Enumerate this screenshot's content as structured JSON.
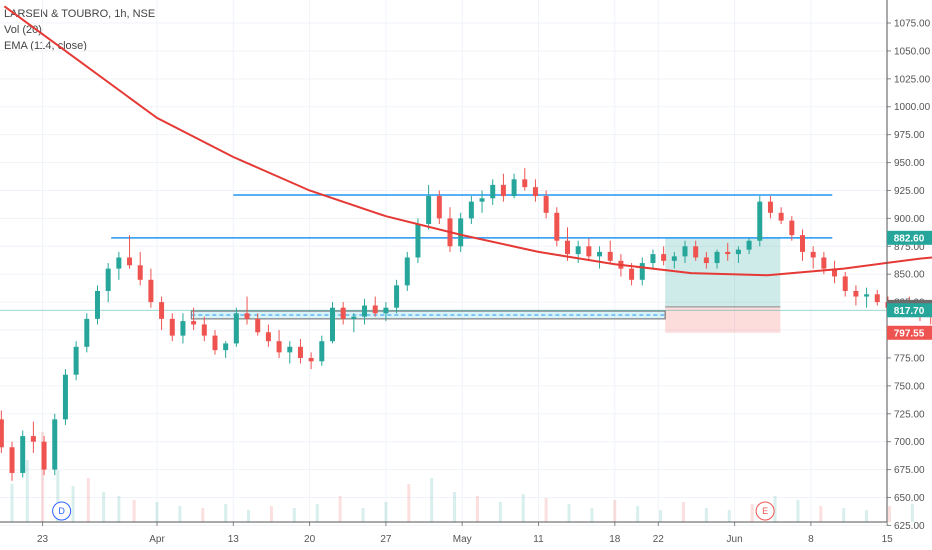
{
  "legend": {
    "title": "LARSEN & TOUBRO, 1h, NSE",
    "volume": "Vol (20)",
    "ema": "EMA (114, close)"
  },
  "price_labels": [
    {
      "text": "882.60",
      "value": 882.6,
      "color": "#26a69a"
    },
    {
      "text": "820.75",
      "value": 820.75,
      "color": "#6d6d6d"
    },
    {
      "text": "817.70",
      "value": 817.7,
      "color": "#26a69a"
    },
    {
      "text": "797.55",
      "value": 797.55,
      "color": "#ef5350"
    }
  ],
  "badges": [
    {
      "text": "D",
      "color": "#2962ff"
    },
    {
      "text": "E",
      "color": "#ef5350"
    }
  ],
  "chart_data": {
    "type": "candlestick",
    "y_ticks": [
      "625.00",
      "650.00",
      "675.00",
      "700.00",
      "725.00",
      "750.00",
      "775.00",
      "800.00",
      "825.00",
      "850.00",
      "875.00",
      "900.00",
      "925.00",
      "950.00",
      "975.00",
      "1000.00",
      "1025.00",
      "1050.00",
      "1075.00"
    ],
    "x_ticks": [
      "23",
      "Apr",
      "13",
      "20",
      "27",
      "May",
      "11",
      "18",
      "22",
      "Jun",
      "8",
      "15"
    ],
    "ylim": [
      622,
      1093
    ],
    "horizontal_lines": [
      {
        "value": 921,
        "color": "#2196f3"
      },
      {
        "value": 882.6,
        "color": "#2196f3"
      }
    ],
    "support_zone": {
      "top": 817,
      "bottom": 810
    },
    "position": {
      "entry": 820.75,
      "target": 882.6,
      "stop": 797.55
    },
    "ema_114": [
      [
        -2,
        1090
      ],
      [
        -1,
        1040
      ],
      [
        0,
        990
      ],
      [
        1,
        955
      ],
      [
        2,
        925
      ],
      [
        3,
        902
      ],
      [
        4,
        885
      ],
      [
        5,
        870
      ],
      [
        6,
        859
      ],
      [
        7,
        851
      ],
      [
        8,
        849
      ],
      [
        9,
        855
      ],
      [
        10,
        864
      ],
      [
        11,
        870
      ],
      [
        12,
        876
      ],
      [
        13,
        880
      ],
      [
        14,
        882
      ],
      [
        15,
        880
      ],
      [
        16,
        878
      ],
      [
        17,
        876
      ],
      [
        18,
        875
      ],
      [
        19,
        875
      ],
      [
        20,
        877
      ],
      [
        21,
        880
      ],
      [
        22,
        879
      ],
      [
        23,
        876
      ],
      [
        24,
        873
      ],
      [
        25,
        868
      ],
      [
        26,
        862
      ],
      [
        27,
        859
      ],
      [
        28,
        855
      ],
      [
        29,
        849
      ],
      [
        30,
        848
      ],
      [
        31,
        852
      ],
      [
        32,
        848
      ],
      [
        33,
        842
      ],
      [
        34,
        839
      ]
    ],
    "ohlc": [
      [
        -4.88,
        970,
        975,
        958,
        962
      ],
      [
        -4.74,
        962,
        968,
        950,
        955
      ],
      [
        -4.6,
        955,
        960,
        935,
        940
      ],
      [
        -4.46,
        940,
        945,
        915,
        920
      ],
      [
        -4.32,
        920,
        925,
        900,
        905
      ],
      [
        -4.0,
        880,
        890,
        860,
        865
      ],
      [
        -3.86,
        865,
        875,
        850,
        860
      ],
      [
        -3.72,
        860,
        870,
        845,
        868
      ],
      [
        -3.58,
        868,
        872,
        850,
        855
      ],
      [
        -3.44,
        855,
        862,
        835,
        840
      ],
      [
        -3.3,
        840,
        878,
        835,
        870
      ],
      [
        -3.16,
        870,
        882,
        855,
        860
      ],
      [
        -3.02,
        860,
        866,
        840,
        845
      ],
      [
        -2.88,
        845,
        850,
        800,
        805
      ],
      [
        -2.74,
        805,
        810,
        770,
        780
      ],
      [
        -2.6,
        780,
        790,
        740,
        750
      ],
      [
        -2.46,
        750,
        760,
        700,
        705
      ],
      [
        -2.32,
        705,
        740,
        695,
        735
      ],
      [
        -2.18,
        735,
        745,
        715,
        720
      ],
      [
        -2.04,
        720,
        728,
        690,
        695
      ],
      [
        -1.9,
        695,
        700,
        665,
        672
      ],
      [
        -1.76,
        672,
        710,
        668,
        705
      ],
      [
        -1.62,
        705,
        718,
        690,
        700
      ],
      [
        -1.48,
        700,
        705,
        670,
        675
      ],
      [
        -1.34,
        675,
        725,
        670,
        720
      ],
      [
        -1.2,
        720,
        765,
        715,
        760
      ],
      [
        -1.06,
        760,
        790,
        755,
        785
      ],
      [
        -0.92,
        785,
        815,
        780,
        810
      ],
      [
        -0.78,
        810,
        840,
        805,
        835
      ],
      [
        -0.64,
        835,
        860,
        825,
        855
      ],
      [
        -0.5,
        855,
        870,
        845,
        865
      ],
      [
        -0.36,
        865,
        885,
        855,
        858
      ],
      [
        -0.22,
        858,
        870,
        840,
        845
      ],
      [
        -0.08,
        845,
        855,
        820,
        825
      ],
      [
        0.06,
        825,
        830,
        800,
        810
      ],
      [
        0.2,
        810,
        815,
        790,
        795
      ],
      [
        0.34,
        795,
        815,
        788,
        808
      ],
      [
        0.48,
        808,
        820,
        800,
        805
      ],
      [
        0.62,
        805,
        812,
        790,
        795
      ],
      [
        0.76,
        795,
        800,
        778,
        782
      ],
      [
        0.9,
        782,
        790,
        775,
        788
      ],
      [
        1.04,
        788,
        820,
        785,
        815
      ],
      [
        1.18,
        815,
        830,
        805,
        810
      ],
      [
        1.32,
        810,
        815,
        795,
        798
      ],
      [
        1.46,
        798,
        805,
        785,
        790
      ],
      [
        1.6,
        790,
        800,
        775,
        780
      ],
      [
        1.74,
        780,
        790,
        770,
        785
      ],
      [
        1.88,
        785,
        792,
        770,
        775
      ],
      [
        2.02,
        775,
        780,
        765,
        772
      ],
      [
        2.16,
        772,
        795,
        768,
        790
      ],
      [
        2.3,
        790,
        825,
        788,
        820
      ],
      [
        2.44,
        820,
        825,
        805,
        810
      ],
      [
        2.58,
        810,
        815,
        798,
        812
      ],
      [
        2.72,
        812,
        828,
        805,
        822
      ],
      [
        2.86,
        822,
        830,
        812,
        815
      ],
      [
        3.0,
        815,
        825,
        808,
        820
      ],
      [
        3.14,
        820,
        845,
        815,
        840
      ],
      [
        3.28,
        840,
        870,
        835,
        865
      ],
      [
        3.42,
        865,
        900,
        860,
        895
      ],
      [
        3.56,
        895,
        930,
        890,
        920
      ],
      [
        3.7,
        920,
        925,
        895,
        900
      ],
      [
        3.84,
        900,
        910,
        870,
        875
      ],
      [
        3.98,
        875,
        905,
        870,
        900
      ],
      [
        4.12,
        900,
        920,
        895,
        915
      ],
      [
        4.26,
        915,
        925,
        905,
        918
      ],
      [
        4.4,
        918,
        935,
        912,
        930
      ],
      [
        4.54,
        930,
        940,
        915,
        920
      ],
      [
        4.68,
        920,
        940,
        918,
        935
      ],
      [
        4.82,
        935,
        945,
        925,
        928
      ],
      [
        4.96,
        928,
        935,
        915,
        920
      ],
      [
        5.1,
        920,
        925,
        900,
        905
      ],
      [
        5.24,
        905,
        910,
        875,
        880
      ],
      [
        5.38,
        880,
        892,
        862,
        868
      ],
      [
        5.52,
        868,
        880,
        860,
        875
      ],
      [
        5.66,
        875,
        882,
        862,
        866
      ],
      [
        5.8,
        866,
        875,
        855,
        870
      ],
      [
        5.94,
        870,
        880,
        860,
        862
      ],
      [
        6.08,
        862,
        868,
        848,
        855
      ],
      [
        6.22,
        855,
        860,
        840,
        845
      ],
      [
        6.36,
        845,
        865,
        840,
        860
      ],
      [
        6.5,
        860,
        872,
        855,
        868
      ],
      [
        6.64,
        868,
        875,
        858,
        862
      ],
      [
        6.78,
        862,
        870,
        855,
        866
      ],
      [
        6.92,
        866,
        880,
        860,
        875
      ],
      [
        7.06,
        875,
        880,
        862,
        865
      ],
      [
        7.2,
        865,
        870,
        855,
        860
      ],
      [
        7.34,
        860,
        872,
        855,
        870
      ],
      [
        7.48,
        870,
        878,
        862,
        868
      ],
      [
        7.62,
        868,
        875,
        860,
        872
      ],
      [
        7.76,
        872,
        882,
        868,
        880
      ],
      [
        7.9,
        880,
        920,
        875,
        915
      ],
      [
        8.04,
        915,
        920,
        900,
        905
      ],
      [
        8.18,
        905,
        910,
        895,
        898
      ],
      [
        8.32,
        898,
        902,
        880,
        885
      ],
      [
        8.46,
        885,
        890,
        862,
        870
      ],
      [
        8.6,
        870,
        875,
        855,
        865
      ],
      [
        8.74,
        865,
        870,
        850,
        855
      ],
      [
        8.88,
        855,
        862,
        842,
        848
      ],
      [
        9.02,
        848,
        852,
        830,
        835
      ],
      [
        9.16,
        835,
        840,
        822,
        830
      ],
      [
        9.3,
        830,
        838,
        820,
        832
      ],
      [
        9.44,
        832,
        836,
        822,
        825
      ],
      [
        9.58,
        825,
        830,
        815,
        820
      ],
      [
        9.72,
        820,
        828,
        814,
        825
      ],
      [
        9.86,
        825,
        830,
        812,
        818
      ],
      [
        10.0,
        818,
        822,
        808,
        815
      ],
      [
        10.14,
        815,
        820,
        805,
        812
      ],
      [
        10.28,
        812,
        818,
        808,
        815
      ],
      [
        10.42,
        815,
        822,
        810,
        818
      ],
      [
        10.56,
        818,
        825,
        812,
        822
      ],
      [
        10.7,
        822,
        835,
        818,
        830
      ],
      [
        10.84,
        830,
        860,
        825,
        855
      ],
      [
        10.98,
        855,
        870,
        848,
        862
      ],
      [
        11.12,
        862,
        870,
        850,
        855
      ],
      [
        11.26,
        855,
        862,
        845,
        858
      ],
      [
        11.4,
        858,
        870,
        852,
        865
      ],
      [
        11.54,
        865,
        880,
        860,
        872
      ],
      [
        11.68,
        872,
        885,
        865,
        868
      ],
      [
        11.82,
        868,
        875,
        855,
        860
      ],
      [
        11.96,
        860,
        865,
        845,
        850
      ],
      [
        12.1,
        850,
        855,
        820,
        825
      ],
      [
        12.24,
        825,
        830,
        812,
        818
      ],
      [
        12.38,
        818,
        825,
        810,
        822
      ],
      [
        12.52,
        822,
        828,
        815,
        820
      ],
      [
        12.66,
        820,
        824,
        812,
        818
      ],
      [
        12.8,
        818,
        822,
        810,
        815
      ],
      [
        12.94,
        815,
        820,
        800,
        805
      ],
      [
        13.08,
        805,
        815,
        798,
        812
      ],
      [
        13.22,
        812,
        825,
        808,
        822
      ],
      [
        13.36,
        822,
        835,
        818,
        830
      ],
      [
        13.5,
        830,
        845,
        825,
        840
      ],
      [
        13.64,
        840,
        845,
        830,
        832
      ],
      [
        13.78,
        832,
        838,
        822,
        826
      ],
      [
        13.92,
        826,
        832,
        820,
        828
      ],
      [
        14.06,
        828,
        830,
        818,
        822
      ],
      [
        14.2,
        822,
        826,
        815,
        820
      ],
      [
        14.34,
        820,
        825,
        816,
        822
      ],
      [
        14.48,
        822,
        826,
        817,
        818
      ]
    ],
    "volumes": [
      [
        -4.9,
        30
      ],
      [
        -4.6,
        20
      ],
      [
        -4.3,
        18
      ],
      [
        -4.0,
        35
      ],
      [
        -3.7,
        22
      ],
      [
        -3.4,
        28
      ],
      [
        -3.1,
        24
      ],
      [
        -2.8,
        40
      ],
      [
        -2.5,
        55
      ],
      [
        -2.3,
        70
      ],
      [
        -2.1,
        48
      ],
      [
        -1.9,
        38
      ],
      [
        -1.7,
        62
      ],
      [
        -1.5,
        90
      ],
      [
        -1.3,
        52
      ],
      [
        -1.1,
        36
      ],
      [
        -0.9,
        44
      ],
      [
        -0.7,
        30
      ],
      [
        -0.5,
        26
      ],
      [
        -0.3,
        22
      ],
      [
        0.0,
        20
      ],
      [
        0.3,
        16
      ],
      [
        0.6,
        14
      ],
      [
        0.9,
        18
      ],
      [
        1.2,
        12
      ],
      [
        1.5,
        16
      ],
      [
        1.8,
        14
      ],
      [
        2.1,
        18
      ],
      [
        2.4,
        26
      ],
      [
        2.7,
        14
      ],
      [
        3.0,
        20
      ],
      [
        3.3,
        38
      ],
      [
        3.6,
        44
      ],
      [
        3.9,
        30
      ],
      [
        4.2,
        26
      ],
      [
        4.5,
        20
      ],
      [
        4.8,
        28
      ],
      [
        5.1,
        24
      ],
      [
        5.4,
        18
      ],
      [
        5.7,
        14
      ],
      [
        6.0,
        22
      ],
      [
        6.3,
        16
      ],
      [
        6.6,
        12
      ],
      [
        6.9,
        20
      ],
      [
        7.2,
        14
      ],
      [
        7.5,
        12
      ],
      [
        7.8,
        18
      ],
      [
        8.1,
        26
      ],
      [
        8.4,
        22
      ],
      [
        8.7,
        16
      ],
      [
        9.0,
        14
      ],
      [
        9.3,
        12
      ],
      [
        9.6,
        16
      ],
      [
        9.9,
        18
      ],
      [
        10.2,
        12
      ],
      [
        10.5,
        22
      ],
      [
        10.8,
        18
      ],
      [
        11.1,
        14
      ],
      [
        11.4,
        20
      ],
      [
        11.7,
        24
      ],
      [
        12.0,
        26
      ],
      [
        12.3,
        16
      ],
      [
        12.6,
        14
      ],
      [
        12.9,
        28
      ],
      [
        13.2,
        20
      ],
      [
        13.5,
        16
      ],
      [
        13.8,
        14
      ],
      [
        14.1,
        12
      ],
      [
        14.4,
        10
      ]
    ]
  }
}
